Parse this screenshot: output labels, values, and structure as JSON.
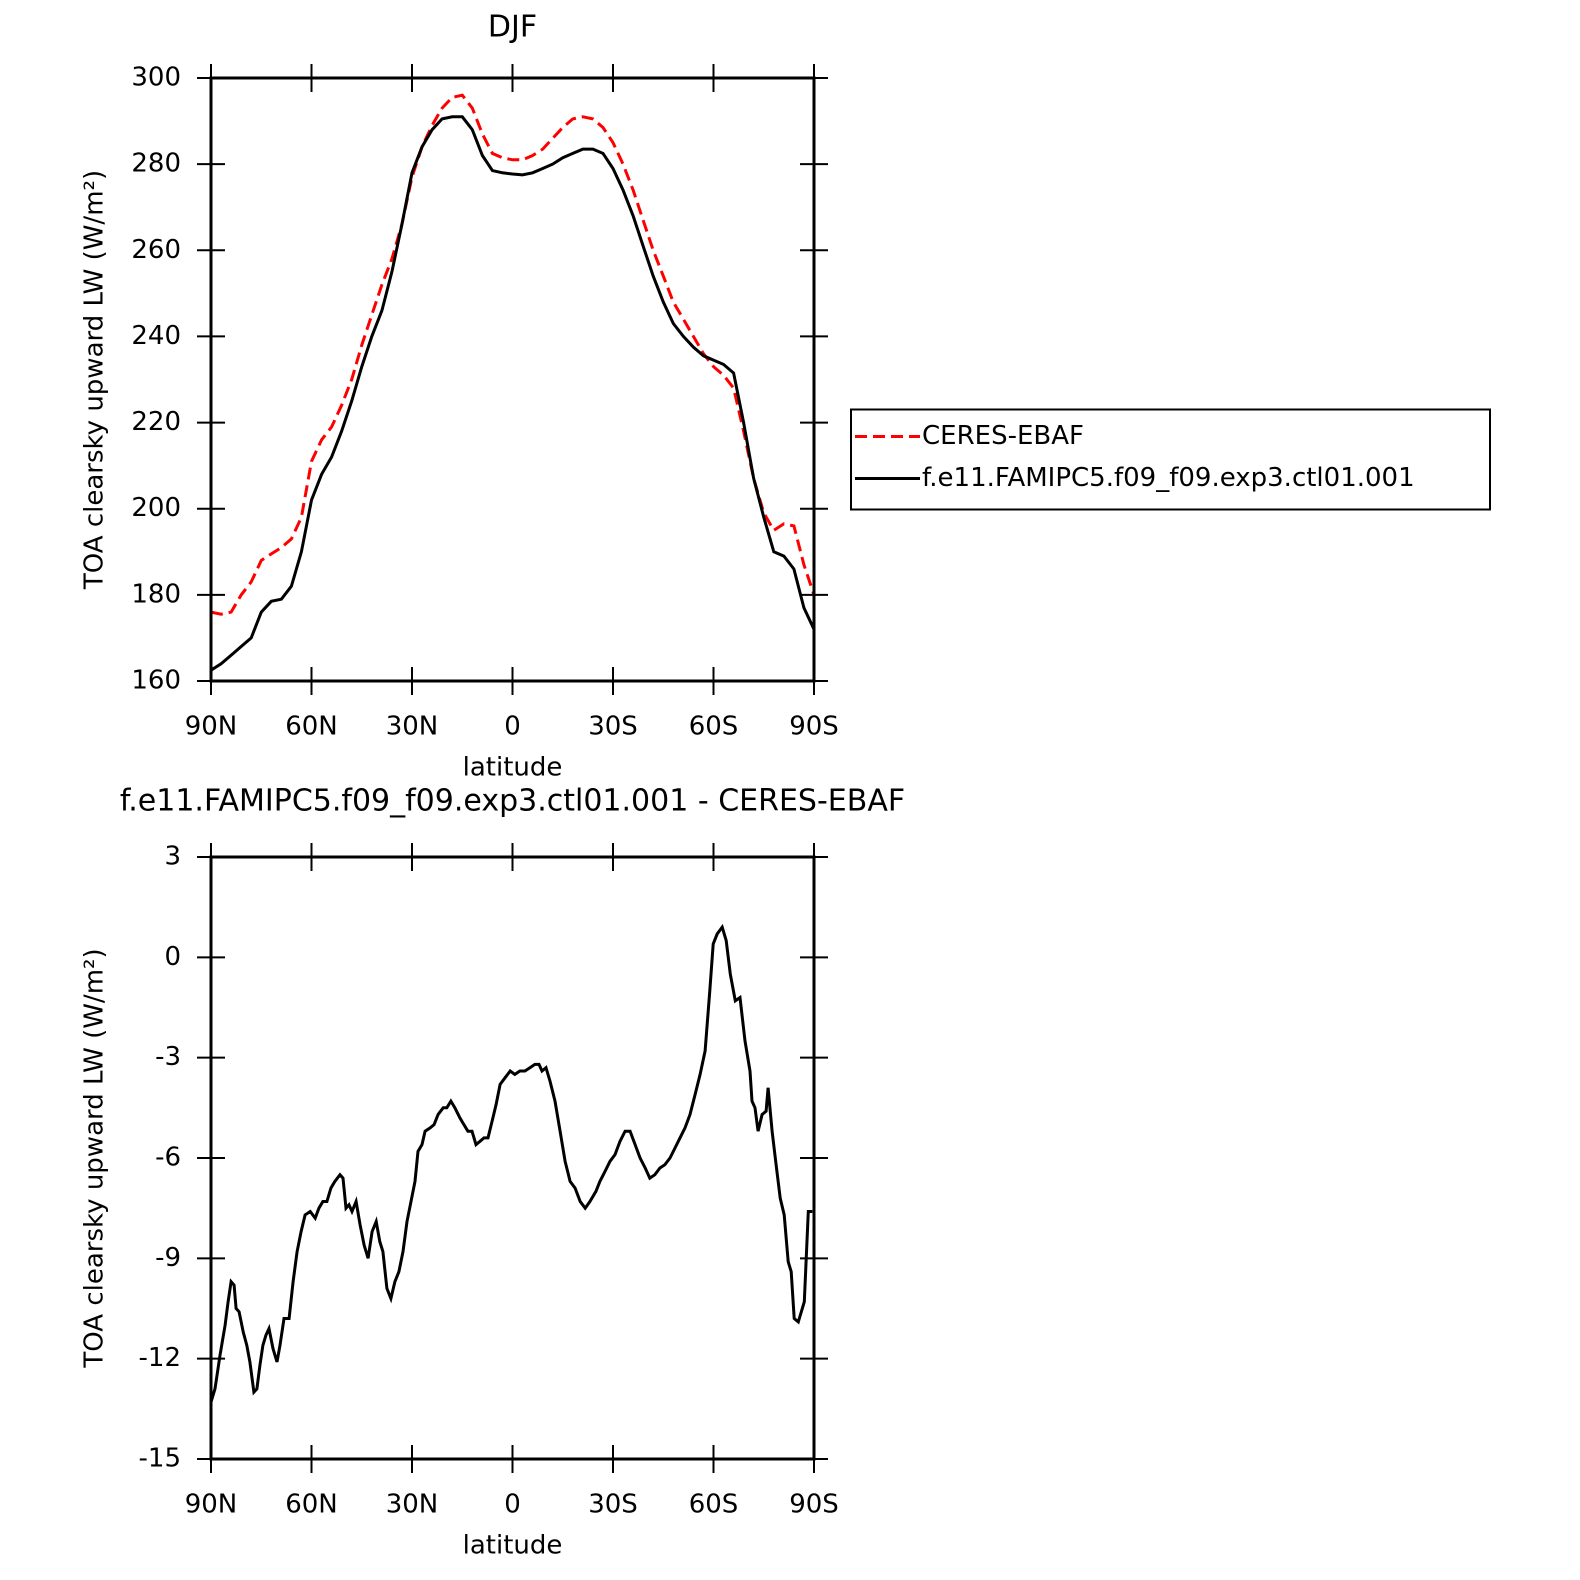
{
  "chart_data": [
    {
      "type": "line",
      "title": "DJF",
      "ylabel": "TOA clearsky upward LW (W/m²)",
      "xlabel": "latitude",
      "xlim": [
        90,
        -90
      ],
      "xticks": [
        {
          "value": 90,
          "label": "90N"
        },
        {
          "value": 60,
          "label": "60N"
        },
        {
          "value": 30,
          "label": "30N"
        },
        0,
        {
          "value": -30,
          "label": "30S"
        },
        {
          "value": -60,
          "label": "60S"
        },
        {
          "value": -90,
          "label": "90S"
        }
      ],
      "ylim": [
        160,
        300
      ],
      "yticks": [
        160,
        180,
        200,
        220,
        240,
        260,
        280,
        300
      ],
      "legend": "right",
      "x": [
        90,
        87,
        84,
        81,
        78,
        75,
        72,
        69,
        66,
        63,
        60,
        57,
        54,
        51,
        48,
        45,
        42,
        39,
        36,
        33,
        30,
        27,
        24,
        21,
        18,
        15,
        12,
        9,
        6,
        3,
        0,
        -3,
        -6,
        -9,
        -12,
        -15,
        -18,
        -21,
        -24,
        -27,
        -30,
        -33,
        -36,
        -39,
        -42,
        -45,
        -48,
        -51,
        -54,
        -57,
        -60,
        -63,
        -66,
        -69,
        -72,
        -75,
        -78,
        -81,
        -84,
        -87,
        -90
      ],
      "series": [
        {
          "name": "CERES-EBAF",
          "color": "#ff0000",
          "line_style": "dashed",
          "values": [
            176,
            175.5,
            176,
            180,
            183,
            188,
            189.5,
            191,
            193,
            198,
            211,
            216,
            219,
            224,
            230,
            238,
            245,
            252,
            258,
            266,
            277,
            284,
            289,
            293,
            295.5,
            296,
            293,
            287,
            282.5,
            281.5,
            281,
            281,
            282,
            283.5,
            286,
            288.5,
            290.5,
            291,
            290.5,
            288.5,
            285,
            280,
            274,
            267,
            260,
            254,
            248,
            244,
            240,
            236,
            233,
            231,
            228,
            218,
            207,
            199,
            195,
            196.5,
            196,
            187,
            180
          ]
        },
        {
          "name": "f.e11.FAMIPC5.f09_f09.exp3.ctl01.001",
          "color": "#000000",
          "line_style": "solid",
          "values": [
            162.5,
            164,
            166,
            168,
            170,
            176,
            178.5,
            179,
            182,
            190,
            202,
            208,
            212,
            218,
            225,
            233,
            240,
            246,
            255,
            266,
            278,
            284,
            288,
            290.5,
            291,
            291,
            288,
            282,
            278.5,
            278,
            277.7,
            277.5,
            278,
            279,
            280,
            281.5,
            282.5,
            283.5,
            283.5,
            282.5,
            279,
            274,
            268,
            261,
            254,
            248,
            243,
            240,
            237.5,
            235.5,
            234.5,
            233.5,
            231.5,
            220,
            207,
            198,
            190,
            189,
            186,
            177,
            172
          ]
        }
      ]
    },
    {
      "type": "line",
      "title": "f.e11.FAMIPC5.f09_f09.exp3.ctl01.001 - CERES-EBAF",
      "ylabel": "TOA clearsky upward LW (W/m²)",
      "xlabel": "latitude",
      "xlim": [
        90,
        -90
      ],
      "xticks": [
        {
          "value": 90,
          "label": "90N"
        },
        {
          "value": 60,
          "label": "60N"
        },
        {
          "value": 30,
          "label": "30N"
        },
        0,
        {
          "value": -30,
          "label": "30S"
        },
        {
          "value": -60,
          "label": "60S"
        },
        {
          "value": -90,
          "label": "90S"
        }
      ],
      "ylim": [
        -15,
        3
      ],
      "yticks": [
        -15,
        -12,
        -9,
        -6,
        -3,
        0,
        3
      ],
      "x": [
        90,
        88.8,
        87.3,
        85.8,
        84.9,
        84.0,
        83.1,
        82.5,
        81.6,
        80.4,
        79.3,
        78.4,
        77.2,
        76.3,
        75.4,
        74.5,
        73.6,
        72.7,
        71.5,
        70.3,
        69.4,
        68.2,
        66.7,
        65.5,
        64.3,
        63.1,
        61.9,
        60.4,
        58.9,
        57.8,
        56.6,
        55.4,
        54.2,
        53.0,
        51.5,
        50.6,
        49.7,
        48.8,
        47.9,
        46.7,
        45.5,
        44.3,
        43.1,
        41.9,
        40.7,
        39.6,
        38.7,
        37.5,
        36.3,
        35.1,
        33.9,
        32.7,
        31.5,
        30.3,
        29.1,
        28.2,
        27.0,
        26.1,
        24.6,
        23.4,
        22.2,
        20.7,
        19.6,
        18.4,
        17.2,
        15.7,
        14.5,
        13.3,
        12.1,
        10.9,
        9.7,
        8.5,
        7.3,
        6.1,
        4.9,
        3.7,
        2.2,
        0.7,
        -0.7,
        -2.2,
        -3.7,
        -5.2,
        -6.7,
        -7.9,
        -8.8,
        -10.0,
        -11.2,
        -12.7,
        -14.2,
        -15.7,
        -17.2,
        -18.7,
        -20.2,
        -21.7,
        -23.1,
        -24.9,
        -26.1,
        -27.6,
        -29.1,
        -30.6,
        -32.1,
        -33.6,
        -35.1,
        -36.6,
        -38.1,
        -39.6,
        -41.0,
        -42.5,
        -44.0,
        -45.5,
        -47.0,
        -48.5,
        -50.0,
        -51.5,
        -53.0,
        -54.5,
        -56.0,
        -57.5,
        -58.9,
        -59.9,
        -61.1,
        -62.6,
        -63.8,
        -65.0,
        -66.5,
        -67.9,
        -69.4,
        -70.9,
        -71.5,
        -72.4,
        -73.3,
        -74.5,
        -75.7,
        -76.3,
        -77.5,
        -78.7,
        -79.9,
        -81.1,
        -82.3,
        -83.2,
        -84.1,
        -85.3,
        -87.1,
        -88.3,
        -89.5
      ],
      "color": "#000000",
      "values": [
        -13.3,
        -12.9,
        -11.9,
        -11.0,
        -10.3,
        -9.7,
        -9.8,
        -10.5,
        -10.6,
        -11.2,
        -11.6,
        -12.1,
        -13.0,
        -12.9,
        -12.2,
        -11.6,
        -11.3,
        -11.1,
        -11.7,
        -12.1,
        -11.6,
        -10.8,
        -10.8,
        -9.7,
        -8.8,
        -8.2,
        -7.7,
        -7.6,
        -7.8,
        -7.5,
        -7.3,
        -7.3,
        -6.9,
        -6.7,
        -6.5,
        -6.6,
        -7.5,
        -7.4,
        -7.6,
        -7.3,
        -8.0,
        -8.6,
        -9.0,
        -8.2,
        -7.9,
        -8.5,
        -8.8,
        -9.9,
        -10.2,
        -9.7,
        -9.4,
        -8.8,
        -7.9,
        -7.3,
        -6.7,
        -5.8,
        -5.6,
        -5.2,
        -5.1,
        -5.0,
        -4.7,
        -4.5,
        -4.5,
        -4.3,
        -4.5,
        -4.8,
        -5.0,
        -5.2,
        -5.2,
        -5.6,
        -5.5,
        -5.4,
        -5.4,
        -4.9,
        -4.4,
        -3.8,
        -3.6,
        -3.4,
        -3.5,
        -3.4,
        -3.4,
        -3.3,
        -3.2,
        -3.2,
        -3.4,
        -3.3,
        -3.7,
        -4.3,
        -5.2,
        -6.1,
        -6.7,
        -6.9,
        -7.3,
        -7.5,
        -7.3,
        -7.0,
        -6.7,
        -6.4,
        -6.1,
        -5.9,
        -5.5,
        -5.2,
        -5.2,
        -5.6,
        -6.0,
        -6.3,
        -6.6,
        -6.5,
        -6.3,
        -6.2,
        -6.0,
        -5.7,
        -5.4,
        -5.1,
        -4.7,
        -4.1,
        -3.5,
        -2.8,
        -1.0,
        0.4,
        0.7,
        0.9,
        0.5,
        -0.5,
        -1.3,
        -1.2,
        -2.5,
        -3.4,
        -4.3,
        -4.5,
        -5.2,
        -4.7,
        -4.6,
        -3.9,
        -5.2,
        -6.2,
        -7.2,
        -7.7,
        -9.1,
        -9.4,
        -10.8,
        -10.9,
        -10.3,
        -7.6,
        -7.6
      ]
    }
  ]
}
